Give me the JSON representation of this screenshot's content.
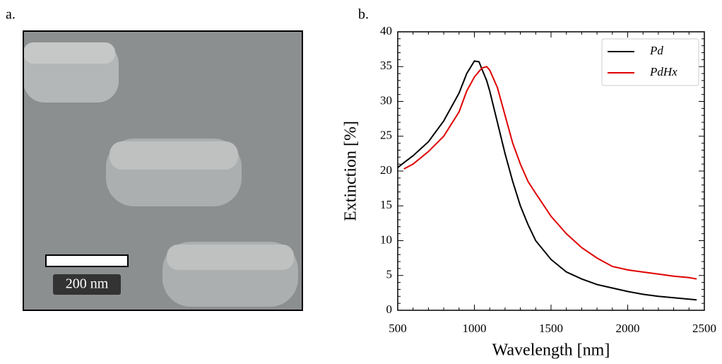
{
  "figure": {
    "panel_a_label": "a.",
    "scale_bar": "200 nm",
    "panel_b_label": "b."
  },
  "chart_data": {
    "type": "line",
    "x_label": "Wavelength [nm]",
    "y_label": "Extinction [%]",
    "x": [
      500,
      540,
      600,
      700,
      800,
      900,
      950,
      1000,
      1030,
      1050,
      1080,
      1100,
      1150,
      1200,
      1250,
      1300,
      1350,
      1400,
      1500,
      1600,
      1700,
      1800,
      1900,
      2000,
      2100,
      2200,
      2300,
      2400,
      2450
    ],
    "series": [
      {
        "name": "Pd",
        "color": "#000000",
        "values": [
          20.5,
          21.2,
          22.2,
          24.2,
          27.2,
          31.2,
          34.0,
          35.8,
          35.7,
          34.6,
          33.0,
          31.5,
          27.0,
          22.5,
          18.5,
          15.0,
          12.3,
          10.0,
          7.3,
          5.5,
          4.5,
          3.7,
          3.2,
          2.7,
          2.3,
          2.0,
          1.8,
          1.6,
          1.5
        ]
      },
      {
        "name": "PdHx",
        "color": "#e00000",
        "values": [
          null,
          20.3,
          21.0,
          22.8,
          25.0,
          28.5,
          31.5,
          33.5,
          34.3,
          34.8,
          35.0,
          34.5,
          32.0,
          28.0,
          24.0,
          21.0,
          18.5,
          16.8,
          13.5,
          11.0,
          9.0,
          7.5,
          6.3,
          5.8,
          5.5,
          5.2,
          4.9,
          4.7,
          4.5
        ]
      }
    ],
    "xlim": [
      500,
      2500
    ],
    "xticks": [
      500,
      1000,
      1500,
      2000,
      2500
    ],
    "ylim": [
      0,
      40
    ],
    "yticks": [
      0,
      5,
      10,
      15,
      20,
      25,
      30,
      35,
      40
    ],
    "grid": false,
    "legend": "upper right"
  }
}
